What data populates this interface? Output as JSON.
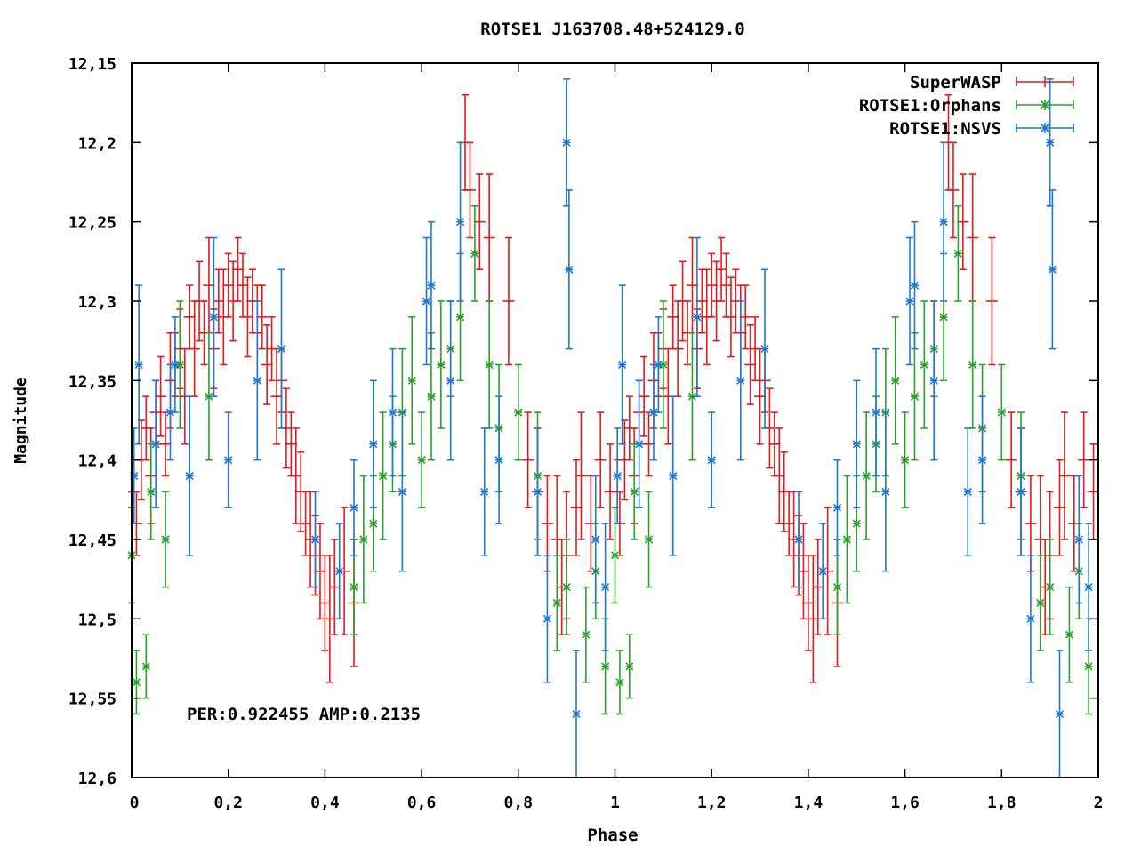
{
  "chart_data": {
    "type": "scatter",
    "title": "ROTSE1 J163708.48+524129.0",
    "xlabel": "Phase",
    "ylabel": "Magnitude",
    "xlim": [
      0,
      2
    ],
    "ylim": [
      12.6,
      12.15
    ],
    "y_inverted": true,
    "x_ticks": [
      0,
      0.2,
      0.4,
      0.6,
      0.8,
      1,
      1.2,
      1.4,
      1.6,
      1.8,
      2
    ],
    "x_tick_labels": [
      "0",
      "0,2",
      "0,4",
      "0,6",
      "0,8",
      "1",
      "1,2",
      "1,4",
      "1,6",
      "1,8",
      "2"
    ],
    "y_ticks": [
      12.15,
      12.2,
      12.25,
      12.3,
      12.35,
      12.4,
      12.45,
      12.5,
      12.55,
      12.6
    ],
    "y_tick_labels": [
      "12,15",
      "12,2",
      "12,25",
      "12,3",
      "12,35",
      "12,4",
      "12,45",
      "12,5",
      "12,55",
      "12,6"
    ],
    "annotation": "PER:0.922455 AMP:0.2135",
    "legend_position": "top-right",
    "phase_repeat": 1,
    "series": [
      {
        "name": "SuperWASP",
        "color": "#e41a1c",
        "marker": "plus",
        "xerr": 0.012,
        "points": [
          [
            0.005,
            12.42,
            0.02
          ],
          [
            0.01,
            12.44,
            0.02
          ],
          [
            0.02,
            12.4,
            0.025
          ],
          [
            0.03,
            12.38,
            0.02
          ],
          [
            0.04,
            12.41,
            0.03
          ],
          [
            0.05,
            12.37,
            0.02
          ],
          [
            0.06,
            12.36,
            0.025
          ],
          [
            0.07,
            12.39,
            0.02
          ],
          [
            0.08,
            12.35,
            0.03
          ],
          [
            0.09,
            12.34,
            0.02
          ],
          [
            0.1,
            12.33,
            0.025
          ],
          [
            0.11,
            12.36,
            0.03
          ],
          [
            0.12,
            12.31,
            0.02
          ],
          [
            0.13,
            12.33,
            0.03
          ],
          [
            0.14,
            12.3,
            0.025
          ],
          [
            0.15,
            12.32,
            0.02
          ],
          [
            0.16,
            12.29,
            0.03
          ],
          [
            0.17,
            12.33,
            0.025
          ],
          [
            0.18,
            12.3,
            0.02
          ],
          [
            0.19,
            12.31,
            0.03
          ],
          [
            0.2,
            12.29,
            0.02
          ],
          [
            0.21,
            12.3,
            0.025
          ],
          [
            0.22,
            12.28,
            0.02
          ],
          [
            0.23,
            12.29,
            0.02
          ],
          [
            0.24,
            12.31,
            0.025
          ],
          [
            0.25,
            12.3,
            0.02
          ],
          [
            0.26,
            12.32,
            0.03
          ],
          [
            0.27,
            12.31,
            0.02
          ],
          [
            0.28,
            12.34,
            0.025
          ],
          [
            0.29,
            12.33,
            0.02
          ],
          [
            0.3,
            12.36,
            0.03
          ],
          [
            0.31,
            12.35,
            0.02
          ],
          [
            0.32,
            12.38,
            0.025
          ],
          [
            0.33,
            12.39,
            0.02
          ],
          [
            0.34,
            12.41,
            0.03
          ],
          [
            0.35,
            12.42,
            0.025
          ],
          [
            0.36,
            12.44,
            0.02
          ],
          [
            0.37,
            12.45,
            0.03
          ],
          [
            0.38,
            12.46,
            0.025
          ],
          [
            0.39,
            12.47,
            0.03
          ],
          [
            0.4,
            12.49,
            0.03
          ],
          [
            0.41,
            12.5,
            0.04
          ],
          [
            0.42,
            12.48,
            0.03
          ],
          [
            0.44,
            12.47,
            0.04
          ],
          [
            0.46,
            12.49,
            0.04
          ],
          [
            0.69,
            12.2,
            0.03
          ],
          [
            0.7,
            12.23,
            0.03
          ],
          [
            0.72,
            12.25,
            0.03
          ],
          [
            0.74,
            12.26,
            0.04
          ],
          [
            0.78,
            12.3,
            0.04
          ],
          [
            0.82,
            12.4,
            0.03
          ],
          [
            0.84,
            12.42,
            0.04
          ],
          [
            0.86,
            12.44,
            0.03
          ],
          [
            0.88,
            12.45,
            0.04
          ],
          [
            0.89,
            12.48,
            0.03
          ],
          [
            0.9,
            12.46,
            0.04
          ],
          [
            0.92,
            12.43,
            0.03
          ],
          [
            0.93,
            12.41,
            0.04
          ],
          [
            0.95,
            12.44,
            0.03
          ],
          [
            0.97,
            12.4,
            0.03
          ],
          [
            0.99,
            12.42,
            0.03
          ]
        ]
      },
      {
        "name": "ROTSE1:Orphans",
        "color": "#2ca02c",
        "marker": "cross",
        "xerr": 0.008,
        "points": [
          [
            0.0,
            12.46,
            0.03
          ],
          [
            0.01,
            12.54,
            0.02
          ],
          [
            0.03,
            12.53,
            0.02
          ],
          [
            0.04,
            12.42,
            0.03
          ],
          [
            0.07,
            12.45,
            0.03
          ],
          [
            0.1,
            12.34,
            0.04
          ],
          [
            0.16,
            12.36,
            0.04
          ],
          [
            0.46,
            12.48,
            0.03
          ],
          [
            0.48,
            12.45,
            0.04
          ],
          [
            0.5,
            12.44,
            0.03
          ],
          [
            0.52,
            12.41,
            0.04
          ],
          [
            0.54,
            12.39,
            0.03
          ],
          [
            0.56,
            12.37,
            0.04
          ],
          [
            0.58,
            12.35,
            0.04
          ],
          [
            0.6,
            12.4,
            0.03
          ],
          [
            0.62,
            12.36,
            0.04
          ],
          [
            0.64,
            12.34,
            0.04
          ],
          [
            0.66,
            12.33,
            0.03
          ],
          [
            0.68,
            12.31,
            0.04
          ],
          [
            0.71,
            12.27,
            0.03
          ],
          [
            0.74,
            12.34,
            0.04
          ],
          [
            0.76,
            12.38,
            0.04
          ],
          [
            0.8,
            12.37,
            0.03
          ],
          [
            0.84,
            12.41,
            0.04
          ],
          [
            0.88,
            12.49,
            0.03
          ],
          [
            0.9,
            12.48,
            0.03
          ],
          [
            0.94,
            12.51,
            0.03
          ],
          [
            0.96,
            12.47,
            0.03
          ],
          [
            0.98,
            12.53,
            0.03
          ]
        ]
      },
      {
        "name": "ROTSE1:NSVS",
        "color": "#1f78d4",
        "marker": "star",
        "xerr": 0.008,
        "points": [
          [
            0.005,
            12.41,
            0.03
          ],
          [
            0.015,
            12.34,
            0.05
          ],
          [
            0.05,
            12.39,
            0.04
          ],
          [
            0.08,
            12.37,
            0.03
          ],
          [
            0.09,
            12.34,
            0.03
          ],
          [
            0.12,
            12.41,
            0.05
          ],
          [
            0.17,
            12.31,
            0.05
          ],
          [
            0.2,
            12.4,
            0.03
          ],
          [
            0.26,
            12.35,
            0.05
          ],
          [
            0.31,
            12.33,
            0.05
          ],
          [
            0.38,
            12.45,
            0.03
          ],
          [
            0.43,
            12.47,
            0.03
          ],
          [
            0.46,
            12.43,
            0.03
          ],
          [
            0.5,
            12.39,
            0.04
          ],
          [
            0.54,
            12.37,
            0.04
          ],
          [
            0.56,
            12.42,
            0.05
          ],
          [
            0.61,
            12.3,
            0.04
          ],
          [
            0.62,
            12.29,
            0.04
          ],
          [
            0.66,
            12.35,
            0.05
          ],
          [
            0.68,
            12.25,
            0.05
          ],
          [
            0.73,
            12.42,
            0.04
          ],
          [
            0.76,
            12.4,
            0.04
          ],
          [
            0.84,
            12.42,
            0.04
          ],
          [
            0.86,
            12.5,
            0.04
          ],
          [
            0.9,
            12.2,
            0.04
          ],
          [
            0.905,
            12.28,
            0.05
          ],
          [
            0.92,
            12.56,
            0.04
          ],
          [
            0.96,
            12.45,
            0.04
          ],
          [
            0.98,
            12.48,
            0.04
          ]
        ]
      }
    ]
  }
}
